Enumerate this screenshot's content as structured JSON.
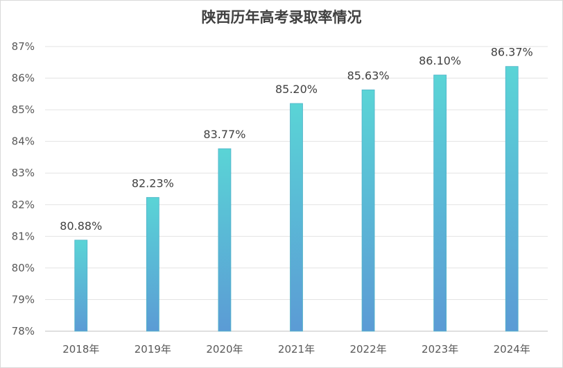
{
  "chart_data": {
    "type": "bar",
    "title": "陕西历年高考录取率情况",
    "categories": [
      "2018年",
      "2019年",
      "2020年",
      "2021年",
      "2022年",
      "2023年",
      "2024年"
    ],
    "values": [
      80.88,
      82.23,
      83.77,
      85.2,
      85.63,
      86.1,
      86.37
    ],
    "data_labels": [
      "80.88%",
      "82.23%",
      "83.77%",
      "85.20%",
      "85.63%",
      "86.10%",
      "86.37%"
    ],
    "ylim": [
      78,
      87
    ],
    "yticks": [
      78,
      79,
      80,
      81,
      82,
      83,
      84,
      85,
      86,
      87
    ],
    "ytick_labels": [
      "78%",
      "79%",
      "80%",
      "81%",
      "82%",
      "83%",
      "84%",
      "85%",
      "86%",
      "87%"
    ],
    "xlabel": "",
    "ylabel": "",
    "grid": true,
    "legend": "none",
    "bar_gradient": {
      "top": "#5ad4d6",
      "bottom": "#5b9bd5"
    }
  }
}
